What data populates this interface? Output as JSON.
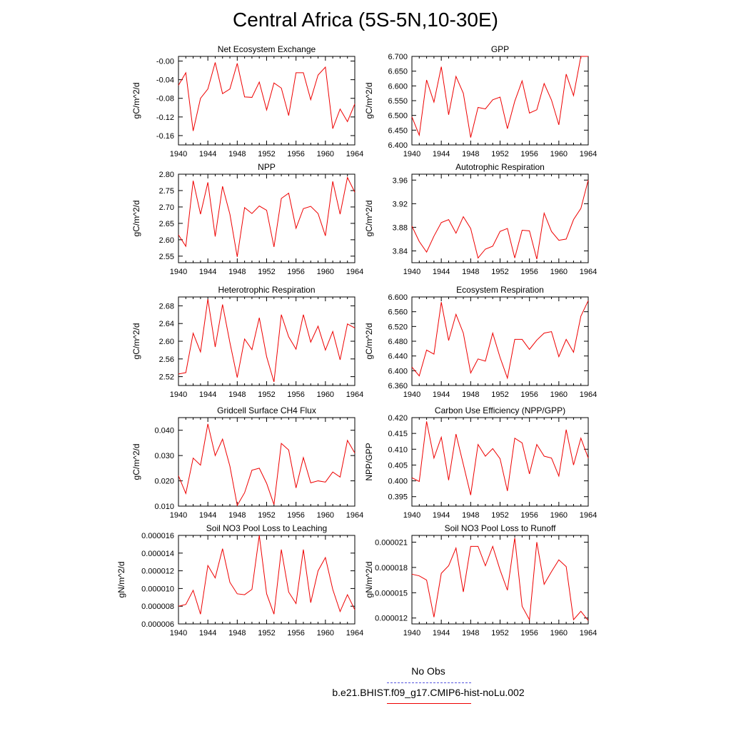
{
  "page": {
    "title": "Central Africa (5S-5N,10-30E)"
  },
  "legend": {
    "obs_label": "No Obs",
    "obs_color": "#5555dd",
    "case_label": "b.e21.BHIST.f09_g17.CMIP6-hist-noLu.002",
    "case_color": "#ee0000"
  },
  "chart_data": [
    {
      "type": "line",
      "title": "Net Ecosystem Exchange",
      "ylabel": "gC/m^2/d",
      "xlabel": "",
      "xlim": [
        1940,
        1964
      ],
      "ylim": [
        -0.18,
        0.01
      ],
      "xticks": [
        "1940",
        "1944",
        "1948",
        "1952",
        "1956",
        "1960",
        "1964"
      ],
      "yticks": [
        "-0.00",
        "-0.04",
        "-0.08",
        "-0.12",
        "-0.16"
      ],
      "ytick_values": [
        0,
        -0.04,
        -0.08,
        -0.12,
        -0.16
      ],
      "series": [
        {
          "color": "#ee0000",
          "x": [
            1940,
            1941,
            1942,
            1943,
            1944,
            1945,
            1946,
            1947,
            1948,
            1949,
            1950,
            1951,
            1952,
            1953,
            1954,
            1955,
            1956,
            1957,
            1958,
            1959,
            1960,
            1961,
            1962,
            1963,
            1964
          ],
          "y": [
            -0.052,
            -0.025,
            -0.15,
            -0.08,
            -0.06,
            -0.003,
            -0.07,
            -0.06,
            -0.005,
            -0.077,
            -0.078,
            -0.045,
            -0.105,
            -0.047,
            -0.058,
            -0.117,
            -0.025,
            -0.025,
            -0.083,
            -0.03,
            -0.013,
            -0.145,
            -0.103,
            -0.13,
            -0.092
          ]
        }
      ]
    },
    {
      "type": "line",
      "title": "GPP",
      "ylabel": "gC/m^2/d",
      "xlabel": "",
      "xlim": [
        1940,
        1964
      ],
      "ylim": [
        6.4,
        6.7
      ],
      "xticks": [
        "1940",
        "1944",
        "1948",
        "1952",
        "1956",
        "1960",
        "1964"
      ],
      "yticks": [
        "6.700",
        "6.650",
        "6.600",
        "6.550",
        "6.500",
        "6.450",
        "6.400"
      ],
      "ytick_values": [
        6.7,
        6.65,
        6.6,
        6.55,
        6.5,
        6.45,
        6.4
      ],
      "series": [
        {
          "color": "#ee0000",
          "x": [
            1940,
            1941,
            1942,
            1943,
            1944,
            1945,
            1946,
            1947,
            1948,
            1949,
            1950,
            1951,
            1952,
            1953,
            1954,
            1955,
            1956,
            1957,
            1958,
            1959,
            1960,
            1961,
            1962,
            1963,
            1964
          ],
          "y": [
            6.495,
            6.433,
            6.62,
            6.545,
            6.665,
            6.502,
            6.632,
            6.575,
            6.425,
            6.527,
            6.522,
            6.553,
            6.562,
            6.455,
            6.548,
            6.617,
            6.508,
            6.519,
            6.608,
            6.552,
            6.468,
            6.64,
            6.567,
            6.7,
            6.7
          ]
        }
      ]
    },
    {
      "type": "line",
      "title": "NPP",
      "ylabel": "gC/m^2/d",
      "xlabel": "",
      "xlim": [
        1940,
        1964
      ],
      "ylim": [
        2.53,
        2.8
      ],
      "xticks": [
        "1940",
        "1944",
        "1948",
        "1952",
        "1956",
        "1960",
        "1964"
      ],
      "yticks": [
        "2.80",
        "2.75",
        "2.70",
        "2.65",
        "2.60",
        "2.55"
      ],
      "ytick_values": [
        2.8,
        2.75,
        2.7,
        2.65,
        2.6,
        2.55
      ],
      "series": [
        {
          "color": "#ee0000",
          "x": [
            1940,
            1941,
            1942,
            1943,
            1944,
            1945,
            1946,
            1947,
            1948,
            1949,
            1950,
            1951,
            1952,
            1953,
            1954,
            1955,
            1956,
            1957,
            1958,
            1959,
            1960,
            1961,
            1962,
            1963,
            1964
          ],
          "y": [
            2.615,
            2.58,
            2.78,
            2.678,
            2.775,
            2.61,
            2.763,
            2.678,
            2.548,
            2.698,
            2.68,
            2.703,
            2.69,
            2.578,
            2.726,
            2.742,
            2.635,
            2.695,
            2.702,
            2.68,
            2.612,
            2.778,
            2.678,
            2.79,
            2.745
          ]
        }
      ]
    },
    {
      "type": "line",
      "title": "Autotrophic Respiration",
      "ylabel": "gC/m^2/d",
      "xlabel": "",
      "xlim": [
        1940,
        1964
      ],
      "ylim": [
        3.82,
        3.97
      ],
      "xticks": [
        "1940",
        "1944",
        "1948",
        "1952",
        "1956",
        "1960",
        "1964"
      ],
      "yticks": [
        "3.96",
        "3.92",
        "3.88",
        "3.84"
      ],
      "ytick_values": [
        3.96,
        3.92,
        3.88,
        3.84
      ],
      "series": [
        {
          "color": "#ee0000",
          "x": [
            1940,
            1941,
            1942,
            1943,
            1944,
            1945,
            1946,
            1947,
            1948,
            1949,
            1950,
            1951,
            1952,
            1953,
            1954,
            1955,
            1956,
            1957,
            1958,
            1959,
            1960,
            1961,
            1962,
            1963,
            1964
          ],
          "y": [
            3.882,
            3.856,
            3.838,
            3.865,
            3.888,
            3.893,
            3.87,
            3.898,
            3.878,
            3.828,
            3.843,
            3.848,
            3.873,
            3.878,
            3.828,
            3.875,
            3.874,
            3.826,
            3.904,
            3.873,
            3.858,
            3.86,
            3.893,
            3.912,
            3.96
          ]
        }
      ]
    },
    {
      "type": "line",
      "title": "Heterotrophic Respiration",
      "ylabel": "gC/m^2/d",
      "xlabel": "",
      "xlim": [
        1940,
        1964
      ],
      "ylim": [
        2.5,
        2.7
      ],
      "xticks": [
        "1940",
        "1944",
        "1948",
        "1952",
        "1956",
        "1960",
        "1964"
      ],
      "yticks": [
        "2.68",
        "2.64",
        "2.60",
        "2.56",
        "2.52"
      ],
      "ytick_values": [
        2.68,
        2.64,
        2.6,
        2.56,
        2.52
      ],
      "series": [
        {
          "color": "#ee0000",
          "x": [
            1940,
            1941,
            1942,
            1943,
            1944,
            1945,
            1946,
            1947,
            1948,
            1949,
            1950,
            1951,
            1952,
            1953,
            1954,
            1955,
            1956,
            1957,
            1958,
            1959,
            1960,
            1961,
            1962,
            1963,
            1964
          ],
          "y": [
            2.526,
            2.529,
            2.618,
            2.576,
            2.695,
            2.587,
            2.683,
            2.597,
            2.518,
            2.605,
            2.581,
            2.653,
            2.565,
            2.508,
            2.66,
            2.61,
            2.582,
            2.66,
            2.598,
            2.634,
            2.58,
            2.622,
            2.558,
            2.639,
            2.63
          ]
        }
      ]
    },
    {
      "type": "line",
      "title": "Ecosystem Respiration",
      "ylabel": "gC/m^2/d",
      "xlabel": "",
      "xlim": [
        1940,
        1964
      ],
      "ylim": [
        6.36,
        6.6
      ],
      "xticks": [
        "1940",
        "1944",
        "1948",
        "1952",
        "1956",
        "1960",
        "1964"
      ],
      "yticks": [
        "6.600",
        "6.560",
        "6.520",
        "6.480",
        "6.440",
        "6.400",
        "6.360"
      ],
      "ytick_values": [
        6.6,
        6.56,
        6.52,
        6.48,
        6.44,
        6.4,
        6.36
      ],
      "series": [
        {
          "color": "#ee0000",
          "x": [
            1940,
            1941,
            1942,
            1943,
            1944,
            1945,
            1946,
            1947,
            1948,
            1949,
            1950,
            1951,
            1952,
            1953,
            1954,
            1955,
            1956,
            1957,
            1958,
            1959,
            1960,
            1961,
            1962,
            1963,
            1964
          ],
          "y": [
            6.41,
            6.386,
            6.456,
            6.445,
            6.586,
            6.482,
            6.553,
            6.502,
            6.394,
            6.432,
            6.426,
            6.502,
            6.436,
            6.38,
            6.485,
            6.485,
            6.458,
            6.483,
            6.502,
            6.506,
            6.438,
            6.485,
            6.45,
            6.548,
            6.59
          ]
        }
      ]
    },
    {
      "type": "line",
      "title": "Gridcell Surface CH4 Flux",
      "ylabel": "gC/m^2/d",
      "xlabel": "",
      "xlim": [
        1940,
        1964
      ],
      "ylim": [
        0.01,
        0.045
      ],
      "xticks": [
        "1940",
        "1944",
        "1948",
        "1952",
        "1956",
        "1960",
        "1964"
      ],
      "yticks": [
        "0.040",
        "0.030",
        "0.020",
        "0.010"
      ],
      "ytick_values": [
        0.04,
        0.03,
        0.02,
        0.01
      ],
      "series": [
        {
          "color": "#ee0000",
          "x": [
            1940,
            1941,
            1942,
            1943,
            1944,
            1945,
            1946,
            1947,
            1948,
            1949,
            1950,
            1951,
            1952,
            1953,
            1954,
            1955,
            1956,
            1957,
            1958,
            1959,
            1960,
            1961,
            1962,
            1963,
            1964
          ],
          "y": [
            0.022,
            0.015,
            0.029,
            0.0262,
            0.0425,
            0.03,
            0.0365,
            0.0258,
            0.0103,
            0.0153,
            0.0242,
            0.025,
            0.019,
            0.0106,
            0.0348,
            0.0322,
            0.0172,
            0.0292,
            0.0192,
            0.02,
            0.0195,
            0.0235,
            0.0215,
            0.036,
            0.031
          ]
        }
      ]
    },
    {
      "type": "line",
      "title": "Carbon Use Efficiency (NPP/GPP)",
      "ylabel": "NPP/GPP",
      "xlabel": "",
      "xlim": [
        1940,
        1964
      ],
      "ylim": [
        0.392,
        0.42
      ],
      "xticks": [
        "1940",
        "1944",
        "1948",
        "1952",
        "1956",
        "1960",
        "1964"
      ],
      "yticks": [
        "0.420",
        "0.415",
        "0.410",
        "0.405",
        "0.400",
        "0.395"
      ],
      "ytick_values": [
        0.42,
        0.415,
        0.41,
        0.405,
        0.4,
        0.395
      ],
      "series": [
        {
          "color": "#ee0000",
          "x": [
            1940,
            1941,
            1942,
            1943,
            1944,
            1945,
            1946,
            1947,
            1948,
            1949,
            1950,
            1951,
            1952,
            1953,
            1954,
            1955,
            1956,
            1957,
            1958,
            1959,
            1960,
            1961,
            1962,
            1963,
            1964
          ],
          "y": [
            0.401,
            0.3998,
            0.4188,
            0.4072,
            0.4138,
            0.4002,
            0.4148,
            0.4052,
            0.3955,
            0.4115,
            0.4078,
            0.4102,
            0.407,
            0.3968,
            0.4135,
            0.412,
            0.4022,
            0.4115,
            0.4078,
            0.4072,
            0.4015,
            0.4162,
            0.405,
            0.4135,
            0.4072
          ]
        }
      ]
    },
    {
      "type": "line",
      "title": "Soil NO3 Pool Loss to Leaching",
      "ylabel": "gN/m^2/d",
      "xlabel": "",
      "xlim": [
        1940,
        1964
      ],
      "ylim": [
        6e-06,
        1.6e-05
      ],
      "xticks": [
        "1940",
        "1944",
        "1948",
        "1952",
        "1956",
        "1960",
        "1964"
      ],
      "yticks": [
        "0.000016",
        "0.000014",
        "0.000012",
        "0.000010",
        "0.000008",
        "0.000006"
      ],
      "ytick_values": [
        1.6e-05,
        1.4e-05,
        1.2e-05,
        1e-05,
        8e-06,
        6e-06
      ],
      "series": [
        {
          "color": "#ee0000",
          "x": [
            1940,
            1941,
            1942,
            1943,
            1944,
            1945,
            1946,
            1947,
            1948,
            1949,
            1950,
            1951,
            1952,
            1953,
            1954,
            1955,
            1956,
            1957,
            1958,
            1959,
            1960,
            1961,
            1962,
            1963,
            1964
          ],
          "y": [
            8e-06,
            8.2e-06,
            9.8e-06,
            7.1e-06,
            1.26e-05,
            1.12e-05,
            1.45e-05,
            1.07e-05,
            9.4e-06,
            9.3e-06,
            9.9e-06,
            1.6e-05,
            9.4e-06,
            7.1e-06,
            1.44e-05,
            9.6e-06,
            8.3e-06,
            1.44e-05,
            8.4e-06,
            1.2e-05,
            1.35e-05,
            9.9e-06,
            7.4e-06,
            9.3e-06,
            7.6e-06
          ]
        }
      ]
    },
    {
      "type": "line",
      "title": "Soil NO3 Pool Loss to Runoff",
      "ylabel": "gN/m^2/d",
      "xlabel": "",
      "xlim": [
        1940,
        1964
      ],
      "ylim": [
        1.13e-05,
        2.18e-05
      ],
      "xticks": [
        "1940",
        "1944",
        "1948",
        "1952",
        "1956",
        "1960",
        "1964"
      ],
      "yticks": [
        "0.000021",
        "0.000018",
        "0.000015",
        "0.000012"
      ],
      "ytick_values": [
        2.1e-05,
        1.8e-05,
        1.5e-05,
        1.2e-05
      ],
      "series": [
        {
          "color": "#ee0000",
          "x": [
            1940,
            1941,
            1942,
            1943,
            1944,
            1945,
            1946,
            1947,
            1948,
            1949,
            1950,
            1951,
            1952,
            1953,
            1954,
            1955,
            1956,
            1957,
            1958,
            1959,
            1960,
            1961,
            1962,
            1963,
            1964
          ],
          "y": [
            1.72e-05,
            1.7e-05,
            1.65e-05,
            1.21e-05,
            1.73e-05,
            1.82e-05,
            2.03e-05,
            1.51e-05,
            2.05e-05,
            2.05e-05,
            1.82e-05,
            2.05e-05,
            1.77e-05,
            1.53e-05,
            2.15e-05,
            1.34e-05,
            1.18e-05,
            2.1e-05,
            1.6e-05,
            1.75e-05,
            1.89e-05,
            1.81e-05,
            1.18e-05,
            1.28e-05,
            1.17e-05
          ]
        }
      ]
    }
  ]
}
